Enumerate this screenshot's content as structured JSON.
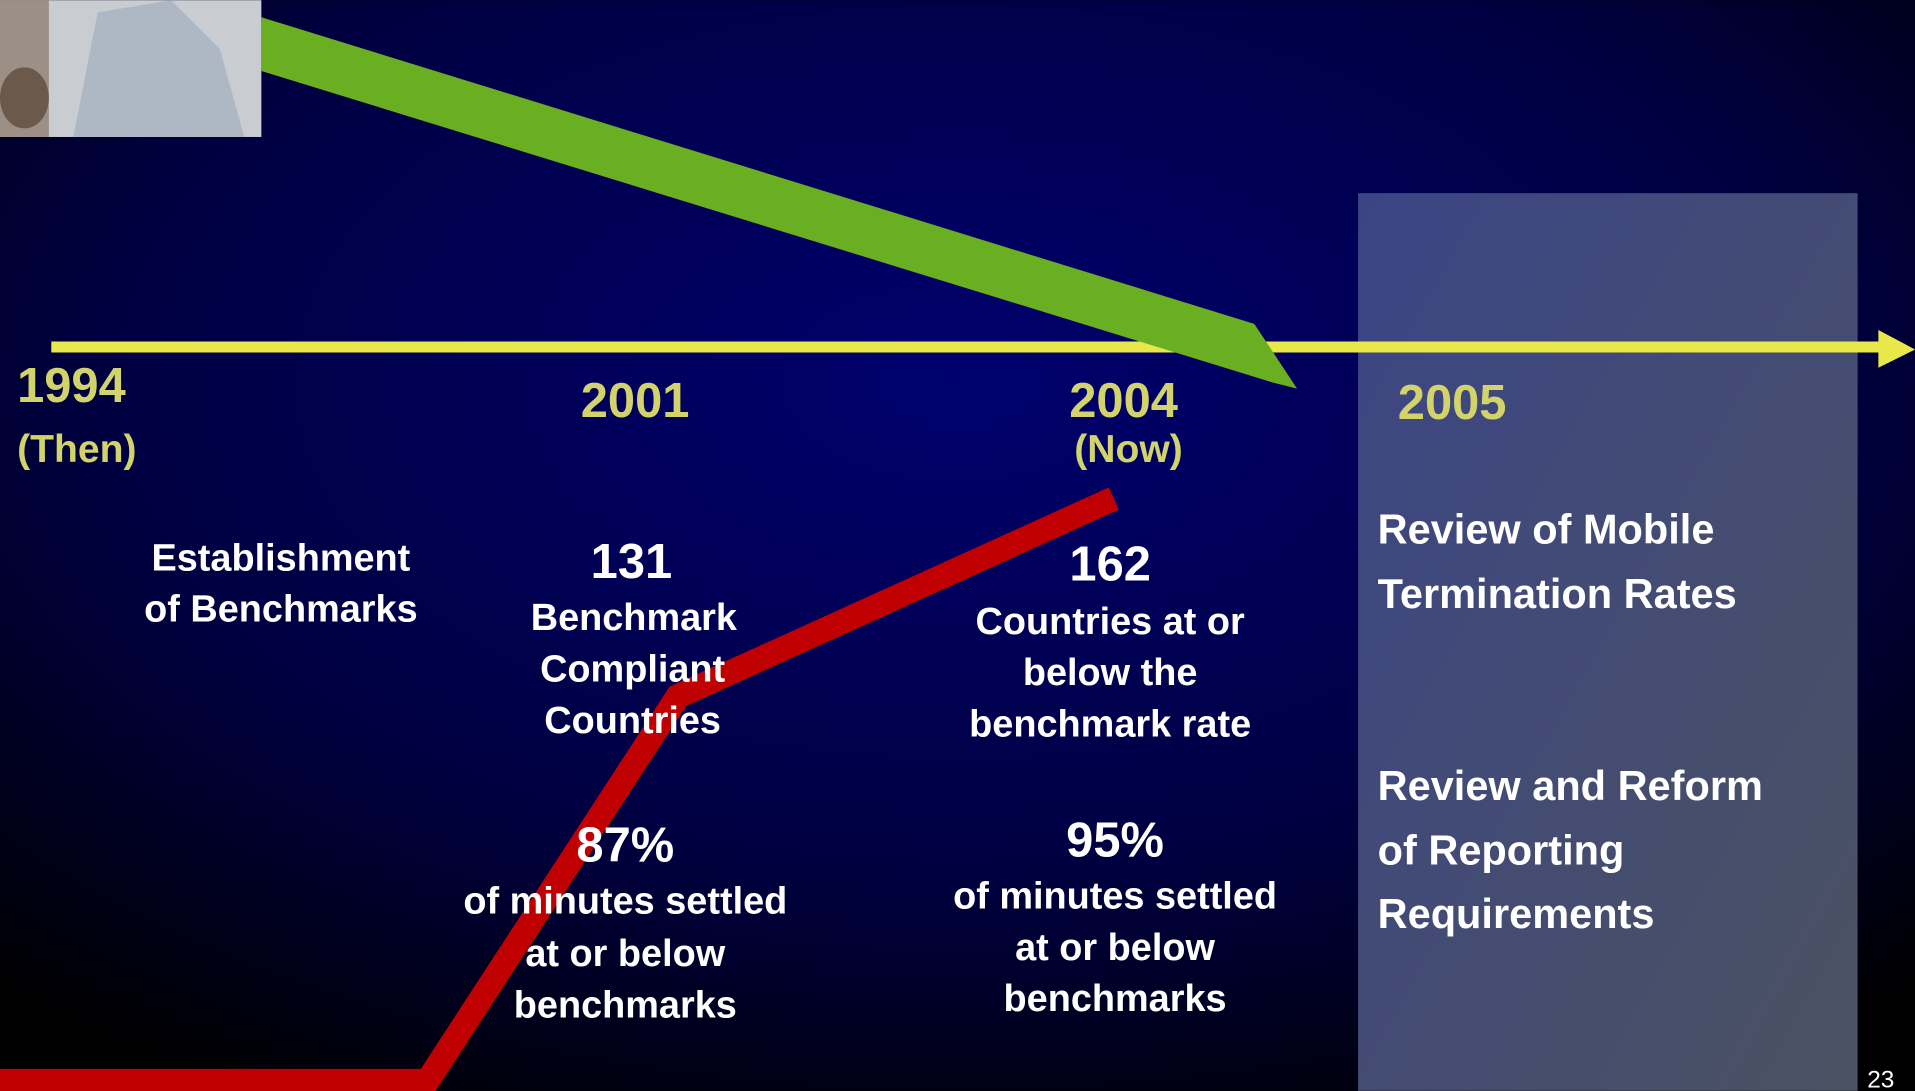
{
  "timeline": [
    {
      "year": "1994",
      "note": "(Then)",
      "blocks": [
        {
          "lines": [
            "Establishment",
            "of Benchmarks"
          ]
        }
      ]
    },
    {
      "year": "2001",
      "blocks": [
        {
          "figure": "131",
          "lines": [
            "Benchmark",
            "Compliant",
            "Countries"
          ]
        },
        {
          "figure": "87%",
          "lines": [
            "of minutes settled",
            "at or below",
            "benchmarks"
          ]
        }
      ]
    },
    {
      "year": "2004",
      "note": "(Now)",
      "blocks": [
        {
          "figure": "162",
          "lines": [
            "Countries at or",
            "below the",
            "benchmark rate"
          ]
        },
        {
          "figure": "95%",
          "lines": [
            "of minutes settled",
            "at or below",
            "benchmarks"
          ]
        }
      ]
    },
    {
      "year": "2005"
    }
  ],
  "panel": {
    "items": [
      {
        "lines": [
          "Review of Mobile",
          "Termination Rates"
        ]
      },
      {
        "lines": [
          "Review and Reform",
          "of Reporting",
          "Requirements"
        ]
      }
    ]
  },
  "page_number": "23"
}
